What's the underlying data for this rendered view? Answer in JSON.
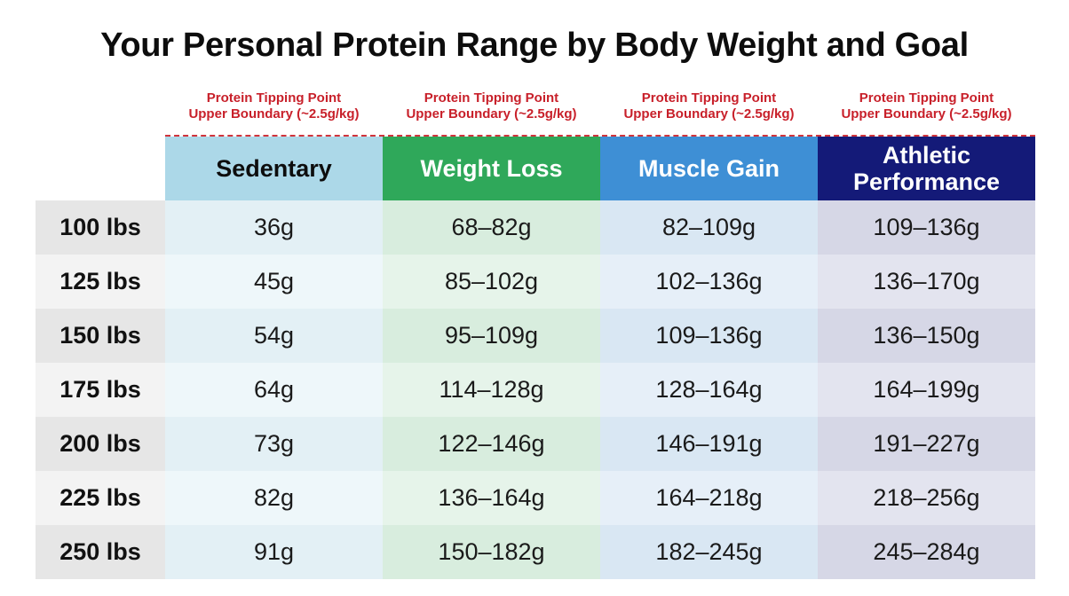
{
  "title": "Your Personal Protein Range by Body Weight and Goal",
  "boundary_label_line1": "Protein Tipping Point",
  "boundary_label_line2": "Upper Boundary (~2.5g/kg)",
  "colors": {
    "boundary_red": "#c8202a",
    "sedentary_header": "#acd8e8",
    "weight_loss_header": "#2fa85a",
    "muscle_gain_header": "#3e8fd5",
    "athletic_header": "#141a78"
  },
  "chart_data": {
    "type": "table",
    "title": "Your Personal Protein Range by Body Weight and Goal",
    "annotation": "Protein Tipping Point Upper Boundary (~2.5g/kg)",
    "columns": [
      "Sedentary",
      "Weight Loss",
      "Muscle Gain",
      "Athletic Performance"
    ],
    "rows": [
      {
        "label": "100 lbs",
        "values": [
          "36g",
          "68–82g",
          "82–109g",
          "109–136g"
        ]
      },
      {
        "label": "125 lbs",
        "values": [
          "45g",
          "85–102g",
          "102–136g",
          "136–170g"
        ]
      },
      {
        "label": "150 lbs",
        "values": [
          "54g",
          "95–109g",
          "109–136g",
          "136–150g"
        ]
      },
      {
        "label": "175 lbs",
        "values": [
          "64g",
          "114–128g",
          "128–164g",
          "164–199g"
        ]
      },
      {
        "label": "200 lbs",
        "values": [
          "73g",
          "122–146g",
          "146–191g",
          "191–227g"
        ]
      },
      {
        "label": "225 lbs",
        "values": [
          "82g",
          "136–164g",
          "164–218g",
          "218–256g"
        ]
      },
      {
        "label": "250 lbs",
        "values": [
          "91g",
          "150–182g",
          "182–245g",
          "245–284g"
        ]
      }
    ]
  }
}
